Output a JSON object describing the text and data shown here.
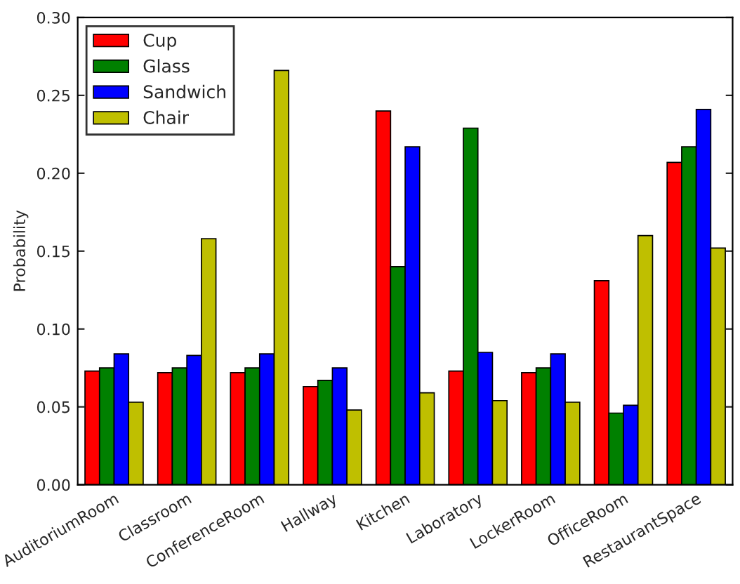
{
  "chart_data": {
    "type": "bar",
    "ylabel": "Probability",
    "categories": [
      "AuditoriumRoom",
      "Classroom",
      "ConferenceRoom",
      "Hallway",
      "Kitchen",
      "Laboratory",
      "LockerRoom",
      "OfficeRoom",
      "RestaurantSpace"
    ],
    "series": [
      {
        "name": "Cup",
        "color": "#ff0000",
        "values": [
          0.073,
          0.072,
          0.072,
          0.063,
          0.24,
          0.073,
          0.072,
          0.131,
          0.207
        ]
      },
      {
        "name": "Glass",
        "color": "#008000",
        "values": [
          0.075,
          0.075,
          0.075,
          0.067,
          0.14,
          0.229,
          0.075,
          0.046,
          0.217
        ]
      },
      {
        "name": "Sandwich",
        "color": "#0000ff",
        "values": [
          0.084,
          0.083,
          0.084,
          0.075,
          0.217,
          0.085,
          0.084,
          0.051,
          0.241
        ]
      },
      {
        "name": "Chair",
        "color": "#bfbf00",
        "values": [
          0.053,
          0.158,
          0.266,
          0.048,
          0.059,
          0.054,
          0.053,
          0.16,
          0.152
        ]
      }
    ],
    "ylim": [
      0,
      0.3
    ],
    "yticks": [
      {
        "value": 0,
        "label": "0.00"
      },
      {
        "value": 0.05,
        "label": "0.05"
      },
      {
        "value": 0.1,
        "label": "0.10"
      },
      {
        "value": 0.15,
        "label": "0.15"
      },
      {
        "value": 0.2,
        "label": "0.20"
      },
      {
        "value": 0.25,
        "label": "0.25"
      },
      {
        "value": 0.3,
        "label": "0.30"
      }
    ],
    "legend": "top left",
    "grid": false
  }
}
